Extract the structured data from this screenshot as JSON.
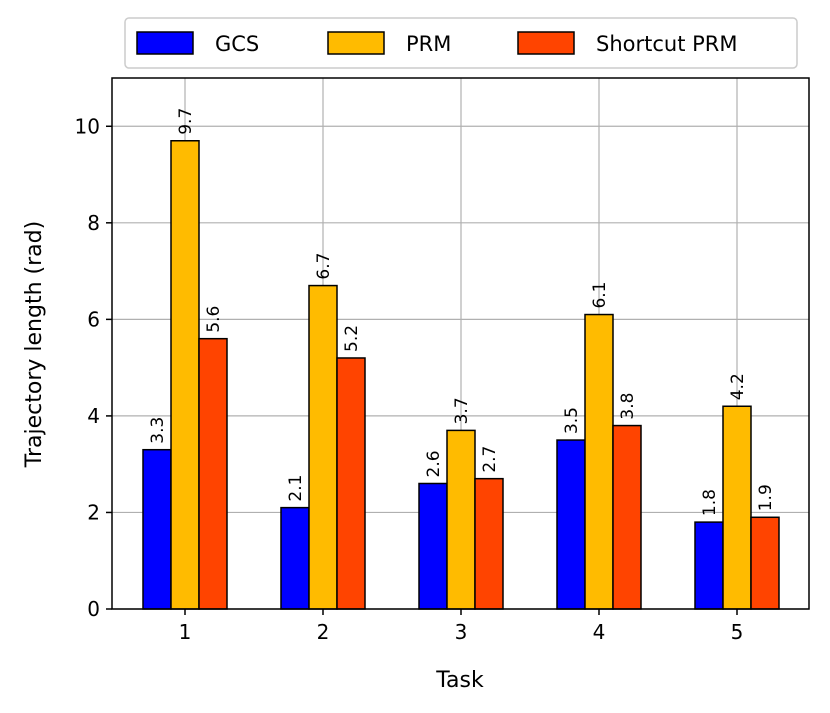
{
  "chart_data": {
    "type": "bar",
    "categories": [
      "1",
      "2",
      "3",
      "4",
      "5"
    ],
    "series": [
      {
        "name": "GCS",
        "values": [
          3.3,
          2.1,
          2.6,
          3.5,
          1.8
        ],
        "labels": [
          "3.3",
          "2.1",
          "2.6",
          "3.5",
          "1.8"
        ],
        "color": "#0000ff"
      },
      {
        "name": "PRM",
        "values": [
          9.7,
          6.7,
          3.7,
          6.1,
          4.2
        ],
        "labels": [
          "9.7",
          "6.7",
          "3.7",
          "6.1",
          "4.2"
        ],
        "color": "#ffbb00"
      },
      {
        "name": "Shortcut PRM",
        "values": [
          5.6,
          5.2,
          2.7,
          3.8,
          1.9
        ],
        "labels": [
          "5.6",
          "5.2",
          "2.7",
          "3.8",
          "1.9"
        ],
        "color": "#ff4400"
      }
    ],
    "xlabel": "Task",
    "ylabel": "Trajectory length (rad)",
    "ylim": [
      0,
      11
    ],
    "yticks": [
      0,
      2,
      4,
      6,
      8,
      10
    ],
    "ytick_labels": [
      "0",
      "2",
      "4",
      "6",
      "8",
      "10"
    ],
    "grid": true,
    "legend_position": "top",
    "legend_layout": "horizontal"
  }
}
